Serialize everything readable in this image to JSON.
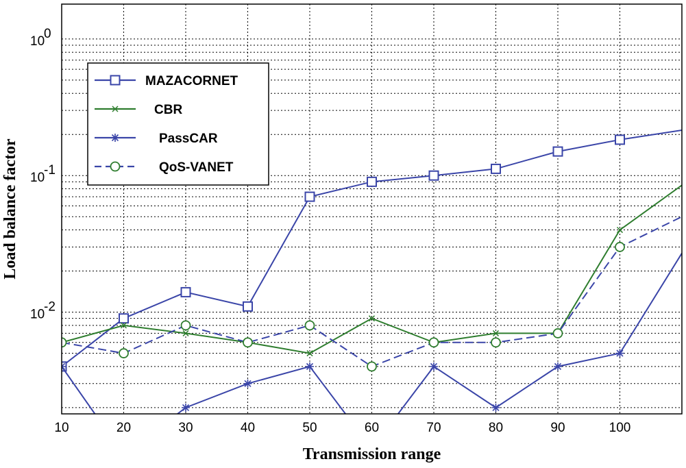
{
  "chart_data": {
    "type": "line",
    "xlabel": "Transmission range",
    "ylabel": "Load balance factor",
    "x_ticks": [
      10,
      20,
      30,
      40,
      50,
      60,
      70,
      80,
      90,
      100
    ],
    "xlim": [
      10,
      110
    ],
    "y_scale": "log",
    "ylim": [
      0.0018,
      1.8
    ],
    "y_ticks": [
      {
        "value": 0.01,
        "base": "10",
        "exp": "-2"
      },
      {
        "value": 0.1,
        "base": "10",
        "exp": "-1"
      },
      {
        "value": 1,
        "base": "10",
        "exp": "0"
      }
    ],
    "grid": true,
    "legend_position": "top-left",
    "series": [
      {
        "name": "MAZACORNET",
        "color": "#3a45a8",
        "marker": "square",
        "dash": "solid",
        "x": [
          10,
          20,
          30,
          40,
          50,
          60,
          70,
          80,
          90,
          100,
          110
        ],
        "y": [
          0.004,
          0.009,
          0.014,
          0.011,
          0.07,
          0.09,
          0.1,
          0.112,
          0.15,
          0.183,
          0.215
        ]
      },
      {
        "name": "CBR",
        "color": "#2e7d2e",
        "marker": "x",
        "dash": "solid",
        "x": [
          10,
          20,
          30,
          40,
          50,
          60,
          70,
          80,
          90,
          100,
          110
        ],
        "y": [
          0.006,
          0.008,
          0.007,
          0.006,
          0.005,
          0.009,
          0.006,
          0.007,
          0.007,
          0.04,
          0.085
        ]
      },
      {
        "name": "PassCAR",
        "color": "#3a45a8",
        "marker": "star",
        "dash": "solid",
        "x": [
          10,
          20,
          30,
          40,
          50,
          60,
          70,
          80,
          90,
          100,
          110
        ],
        "y": [
          0.004,
          0.0009,
          0.002,
          0.003,
          0.004,
          0.001,
          0.004,
          0.002,
          0.004,
          0.005,
          0.027
        ]
      },
      {
        "name": "QoS-VANET",
        "color": "#3a45a8",
        "marker": "circle",
        "marker_color": "#2e7d2e",
        "dash": "dashed",
        "x": [
          10,
          20,
          30,
          40,
          50,
          60,
          70,
          80,
          90,
          100,
          110
        ],
        "y": [
          0.006,
          0.005,
          0.008,
          0.006,
          0.008,
          0.004,
          0.006,
          0.006,
          0.007,
          0.03,
          0.05
        ]
      }
    ]
  }
}
